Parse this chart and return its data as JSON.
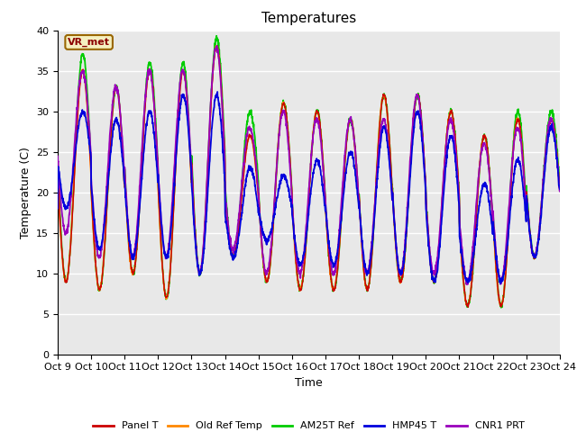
{
  "title": "Temperatures",
  "xlabel": "Time",
  "ylabel": "Temperature (C)",
  "ylim": [
    0,
    40
  ],
  "xtick_labels": [
    "Oct 9",
    "Oct 10",
    "Oct 11",
    "Oct 12",
    "Oct 13",
    "Oct 14",
    "Oct 15",
    "Oct 16",
    "Oct 17",
    "Oct 18",
    "Oct 19",
    "Oct 20",
    "Oct 21",
    "Oct 22",
    "Oct 23",
    "Oct 24"
  ],
  "legend_labels": [
    "Panel T",
    "Old Ref Temp",
    "AM25T Ref",
    "HMP45 T",
    "CNR1 PRT"
  ],
  "legend_colors": [
    "#cc0000",
    "#ff8800",
    "#00cc00",
    "#0000dd",
    "#9900bb"
  ],
  "annotation_text": "VR_met",
  "bg_color": "#e8e8e8",
  "grid_color": "white",
  "title_fontsize": 11,
  "axis_fontsize": 9,
  "tick_fontsize": 8,
  "days": 15,
  "points_per_day": 144,
  "day_mins": [
    9,
    8,
    10,
    7,
    10,
    12,
    9,
    8,
    8,
    8,
    9,
    9,
    6,
    6,
    12
  ],
  "day_maxs": [
    35,
    33,
    35,
    35,
    38,
    27,
    31,
    30,
    29,
    32,
    32,
    30,
    27,
    29,
    29
  ],
  "am25t_maxs": [
    37,
    33,
    36,
    36,
    39,
    30,
    31,
    30,
    29,
    32,
    32,
    30,
    27,
    30,
    30
  ],
  "hmp45_maxs": [
    30,
    29,
    30,
    32,
    32,
    23,
    22,
    24,
    25,
    28,
    30,
    27,
    21,
    24,
    28
  ],
  "hmp45_mins": [
    18,
    13,
    12,
    12,
    10,
    12,
    14,
    11,
    11,
    10,
    10,
    9,
    9,
    9,
    12
  ],
  "cnr1_maxs": [
    35,
    33,
    35,
    35,
    38,
    28,
    30,
    29,
    29,
    29,
    32,
    29,
    26,
    28,
    29
  ],
  "cnr1_mins": [
    15,
    12,
    12,
    12,
    10,
    13,
    10,
    10,
    10,
    10,
    10,
    10,
    9,
    9,
    12
  ]
}
